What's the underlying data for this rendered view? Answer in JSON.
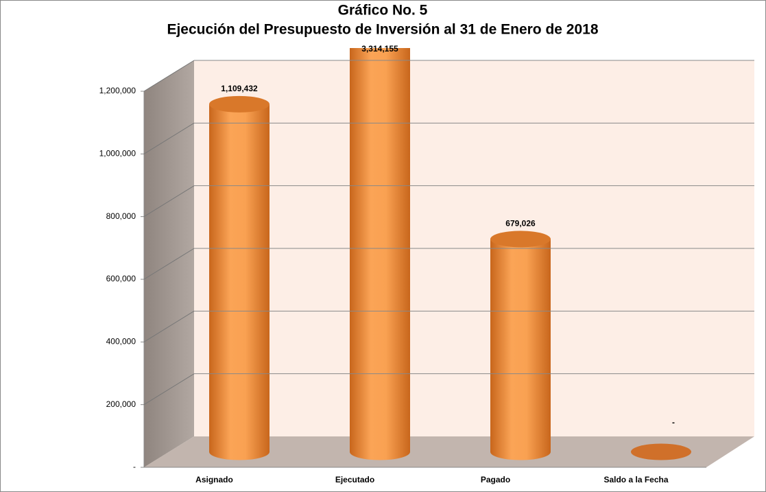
{
  "chart_data": {
    "type": "bar",
    "title": "Gráfico No. 5",
    "subtitle": "Ejecución del Presupuesto de Inversión al 31 de Enero de 2018",
    "categories": [
      "Asignado",
      "Ejecutado",
      "Pagado",
      "Saldo a la Fecha"
    ],
    "values": [
      1109432,
      3314155,
      679026,
      0
    ],
    "value_labels": [
      "1,109,432",
      "3,314,155",
      "679,026",
      "-"
    ],
    "color": "#f59a48",
    "ylim": [
      0,
      1200000
    ],
    "yticks": [
      {
        "value": 0,
        "label": "-"
      },
      {
        "value": 200000,
        "label": "200,000"
      },
      {
        "value": 400000,
        "label": "400,000"
      },
      {
        "value": 600000,
        "label": "600,000"
      },
      {
        "value": 800000,
        "label": "800,000"
      },
      {
        "value": 1000000,
        "label": "1,000,000"
      },
      {
        "value": 1200000,
        "label": "1,200,000"
      }
    ],
    "grid": true
  }
}
